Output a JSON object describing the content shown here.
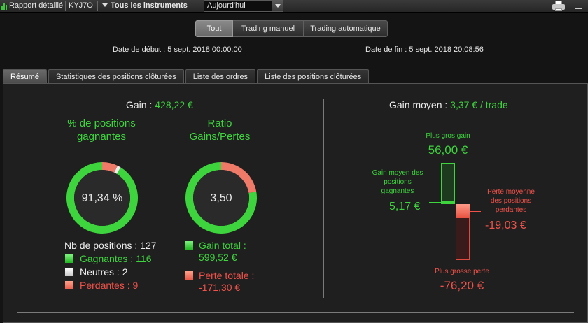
{
  "topbar": {
    "report_label": "Rapport détaillé",
    "account": "KYJ7O",
    "instruments": "Tous les instruments",
    "period": "Aujourd'hui"
  },
  "filters": {
    "buttons": [
      "Tout",
      "Trading manuel",
      "Trading automatique"
    ],
    "active": "Tout",
    "start_label": "Date de début :",
    "start_value": "5 sept. 2018 00:00:00",
    "end_label": "Date de fin :",
    "end_value": "5 sept. 2018 20:08:56"
  },
  "tabs": [
    "Résumé",
    "Statistiques des positions clôturées",
    "Liste des ordres",
    "Liste des positions clôturées"
  ],
  "active_tab": "Résumé",
  "summary": {
    "gain_label": "Gain :",
    "gain_value": "428,22 €",
    "pct_title": "% de positions gagnantes",
    "pct_value": "91,34 %",
    "ratio_title": "Ratio Gains/Pertes",
    "ratio_value": "3,50",
    "positions_label": "Nb de positions : 127",
    "winners_label": "Gagnantes : 116",
    "neutral_label": "Neutres : 2",
    "losers_label": "Perdantes : 9",
    "gain_total_label": "Gain total :",
    "gain_total_value": "599,52 €",
    "loss_total_label": "Perte totale :",
    "loss_total_value": "-171,30 €"
  },
  "average": {
    "label": "Gain moyen :",
    "value": "3,37 € / trade",
    "max_gain_label": "Plus gros gain",
    "max_gain_value": "56,00 €",
    "avg_win_label": "Gain moyen des positions gagnantes",
    "avg_win_value": "5,17 €",
    "avg_loss_label": "Perte moyenne des positions perdantes",
    "avg_loss_value": "-19,03 €",
    "max_loss_label": "Plus grosse perte",
    "max_loss_value": "-76,20 €"
  },
  "chart_data": [
    {
      "type": "pie",
      "categories": [
        "Gagnantes",
        "Neutres",
        "Perdantes"
      ],
      "values": [
        116,
        2,
        9
      ],
      "center_label": "91,34 %",
      "title": "% de positions gagnantes"
    },
    {
      "type": "pie",
      "categories": [
        "Gain total",
        "Perte totale"
      ],
      "values": [
        599.52,
        171.3
      ],
      "center_label": "3,50",
      "title": "Ratio Gains/Pertes"
    },
    {
      "type": "bar",
      "categories": [
        "Plus gros gain",
        "Gain moyen des positions gagnantes",
        "Perte moyenne des positions perdantes",
        "Plus grosse perte"
      ],
      "values": [
        56.0,
        5.17,
        -19.03,
        -76.2
      ]
    }
  ],
  "colors": {
    "green": "#3ed43e",
    "red": "#f0524a",
    "neutral": "#e8e8e8"
  }
}
